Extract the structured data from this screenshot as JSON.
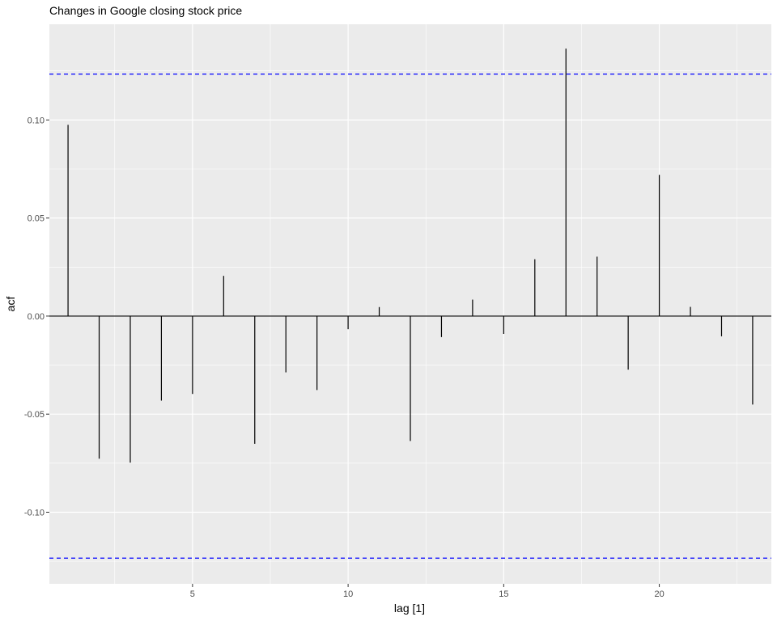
{
  "chart_data": {
    "type": "acf",
    "title": "Changes in Google closing stock price",
    "xlabel": "lag [1]",
    "ylabel": "acf",
    "xlim": [
      0.4,
      23.6
    ],
    "ylim": [
      -0.1365,
      0.1488
    ],
    "x_ticks": [
      5,
      10,
      15,
      20
    ],
    "y_ticks": [
      -0.1,
      -0.05,
      0.0,
      0.05,
      0.1
    ],
    "y_tick_labels": [
      "-0.10",
      "-0.05",
      "0.00",
      "0.05",
      "0.10"
    ],
    "lags": [
      1,
      2,
      3,
      4,
      5,
      6,
      7,
      8,
      9,
      10,
      11,
      12,
      13,
      14,
      15,
      16,
      17,
      18,
      19,
      20,
      21,
      22,
      23
    ],
    "values": [
      0.0975,
      -0.0727,
      -0.0747,
      -0.0431,
      -0.0397,
      0.0205,
      -0.0651,
      -0.0287,
      -0.0377,
      -0.0067,
      0.0046,
      -0.0637,
      -0.0107,
      0.0084,
      -0.0091,
      0.029,
      0.1364,
      0.0303,
      -0.0273,
      0.072,
      0.0047,
      -0.0103,
      -0.0451
    ],
    "confidence_bound": 0.1234,
    "grid": true,
    "colors": {
      "panel_background": "#ebebeb",
      "grid_major": "#ffffff",
      "bars": "#000000",
      "confidence_lines": "#0000ff"
    }
  }
}
